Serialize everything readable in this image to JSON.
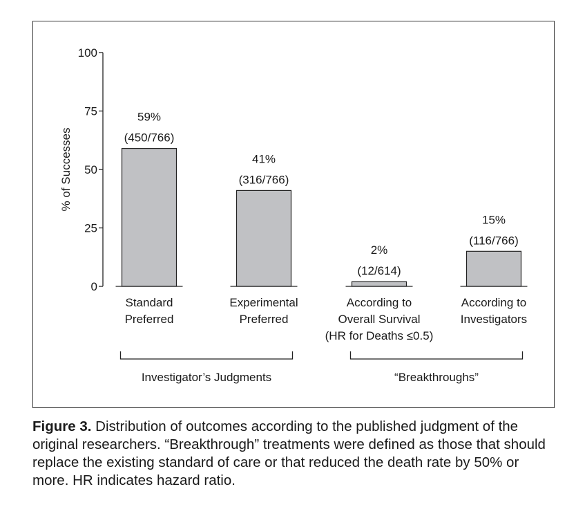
{
  "chart_data": {
    "type": "bar",
    "ylabel": "% of Successes",
    "ylim": [
      0,
      100
    ],
    "yticks": [
      0,
      25,
      50,
      75,
      100
    ],
    "categories": [
      [
        "Standard",
        "Preferred"
      ],
      [
        "Experimental",
        "Preferred"
      ],
      [
        "According to",
        "Overall Survival",
        "(HR for Deaths ≤0.5)"
      ],
      [
        "According to",
        "Investigators"
      ]
    ],
    "values": [
      59,
      41,
      2,
      15
    ],
    "data_labels": [
      [
        "59%",
        "(450/766)"
      ],
      [
        "41%",
        "(316/766)"
      ],
      [
        "2%",
        "(12/614)"
      ],
      [
        "15%",
        "(116/766)"
      ]
    ],
    "groups": [
      {
        "label": "Investigator’s Judgments",
        "categories": [
          0,
          1
        ]
      },
      {
        "label": "“Breakthroughs”",
        "categories": [
          2,
          3
        ]
      }
    ],
    "bar_color": "#c0c1c4",
    "grid": false
  },
  "caption": {
    "label": "Figure 3.",
    "text": " Distribution of outcomes according to the published judgment of the original researchers. “Breakthrough” treatments were defined as those that should replace the existing standard of care or that reduced the death rate by 50% or more. HR indicates hazard ratio."
  }
}
